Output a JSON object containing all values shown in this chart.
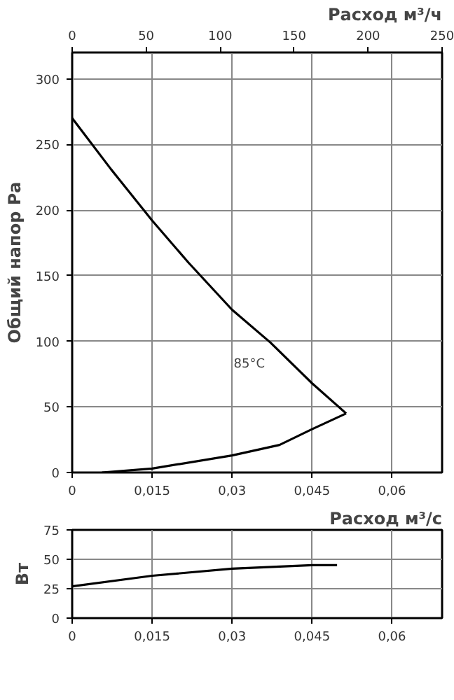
{
  "chart_data": [
    {
      "type": "line",
      "x2label": "Расход м³/ч",
      "ylabel": "Общий напор Ра",
      "xlim": [
        0,
        0.0694
      ],
      "xticks": [
        0,
        {
          "value": 0.015,
          "label": "0,015"
        },
        {
          "value": 0.03,
          "label": "0,03"
        },
        {
          "value": 0.045,
          "label": "0,045"
        },
        {
          "value": 0.06,
          "label": "0,06"
        }
      ],
      "x2lim": [
        0,
        250
      ],
      "x2ticks": [
        0,
        50,
        100,
        150,
        200,
        250
      ],
      "ylim": [
        0,
        320
      ],
      "yticks": [
        0,
        50,
        100,
        150,
        200,
        250,
        300
      ],
      "grid": true,
      "series": [
        {
          "color": "#000000",
          "x": [
            0,
            0.0073,
            0.015,
            0.0218,
            0.03,
            0.0372,
            0.045,
            0.0514
          ],
          "values": [
            270,
            231,
            192,
            160,
            124,
            99,
            68,
            45
          ]
        },
        {
          "color": "#000000",
          "x": [
            0.0056,
            0.015,
            0.03,
            0.0389,
            0.045,
            0.0514
          ],
          "values": [
            0,
            3,
            13,
            21,
            33,
            45
          ]
        }
      ],
      "annotations": [
        {
          "text": "85°C",
          "x": 0.0372,
          "y": 99
        }
      ]
    },
    {
      "type": "line",
      "xlabel": "Расход м³/с",
      "ylabel": "Вт",
      "xlim": [
        0,
        0.0694
      ],
      "xticks": [
        0,
        {
          "value": 0.015,
          "label": "0,015"
        },
        {
          "value": 0.03,
          "label": "0,03"
        },
        {
          "value": 0.045,
          "label": "0,045"
        },
        {
          "value": 0.06,
          "label": "0,06"
        }
      ],
      "ylim": [
        0,
        75
      ],
      "yticks": [
        0,
        25,
        50,
        75
      ],
      "grid": true,
      "series": [
        {
          "color": "#000000",
          "x": [
            0,
            0.015,
            0.03,
            0.045,
            0.0497
          ],
          "values": [
            27,
            36,
            42,
            45,
            45
          ]
        }
      ]
    }
  ]
}
